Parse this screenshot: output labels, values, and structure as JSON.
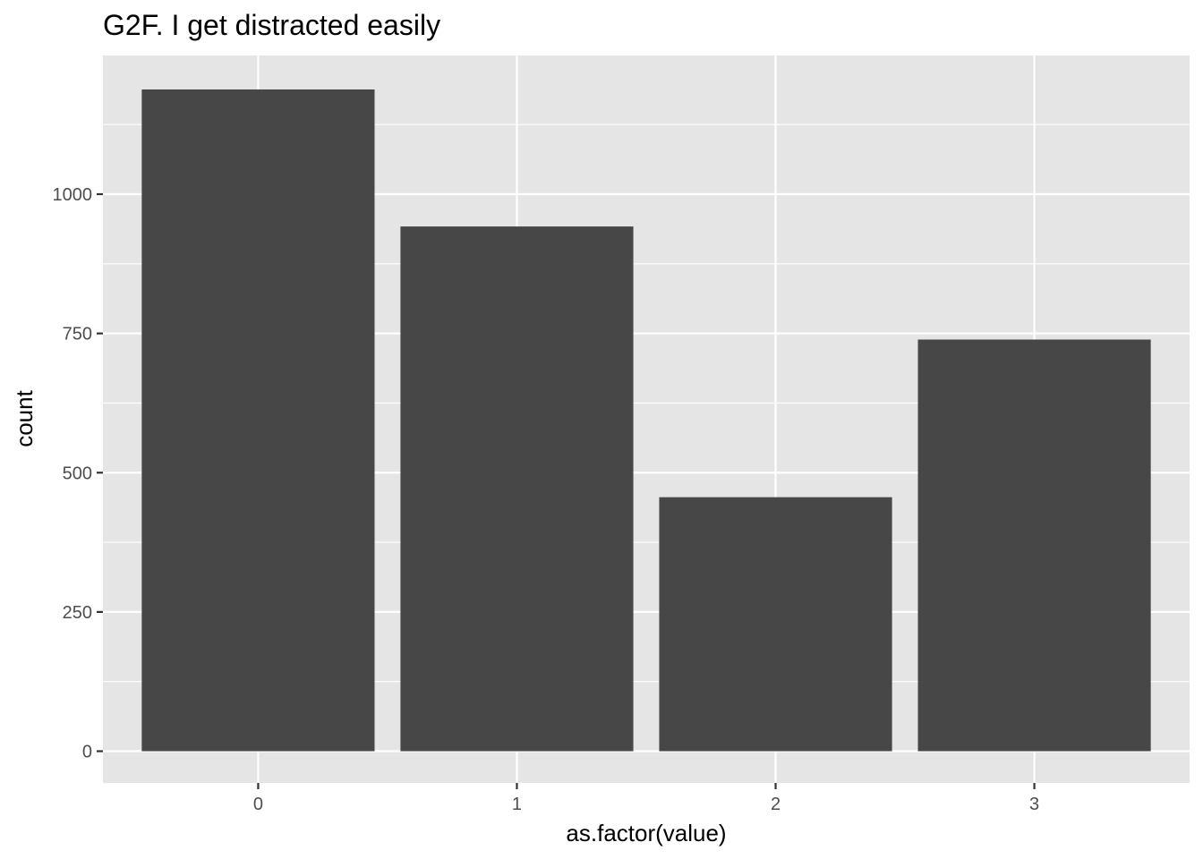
{
  "chart_data": {
    "type": "bar",
    "title": "G2F. I get distracted easily",
    "xlabel": "as.factor(value)",
    "ylabel": "count",
    "categories": [
      "0",
      "1",
      "2",
      "3"
    ],
    "values": [
      1188,
      942,
      456,
      739
    ],
    "ylim": [
      -57,
      1249
    ],
    "y_ticks": [
      0,
      250,
      500,
      750,
      1000
    ],
    "y_tick_labels": [
      "0",
      "250",
      "500",
      "750",
      "1000"
    ],
    "grid": true,
    "legend": "none",
    "colors": {
      "bar": "#474747",
      "panel_background": "#e5e5e5",
      "grid": "#ffffff",
      "tick": "#333333"
    }
  }
}
